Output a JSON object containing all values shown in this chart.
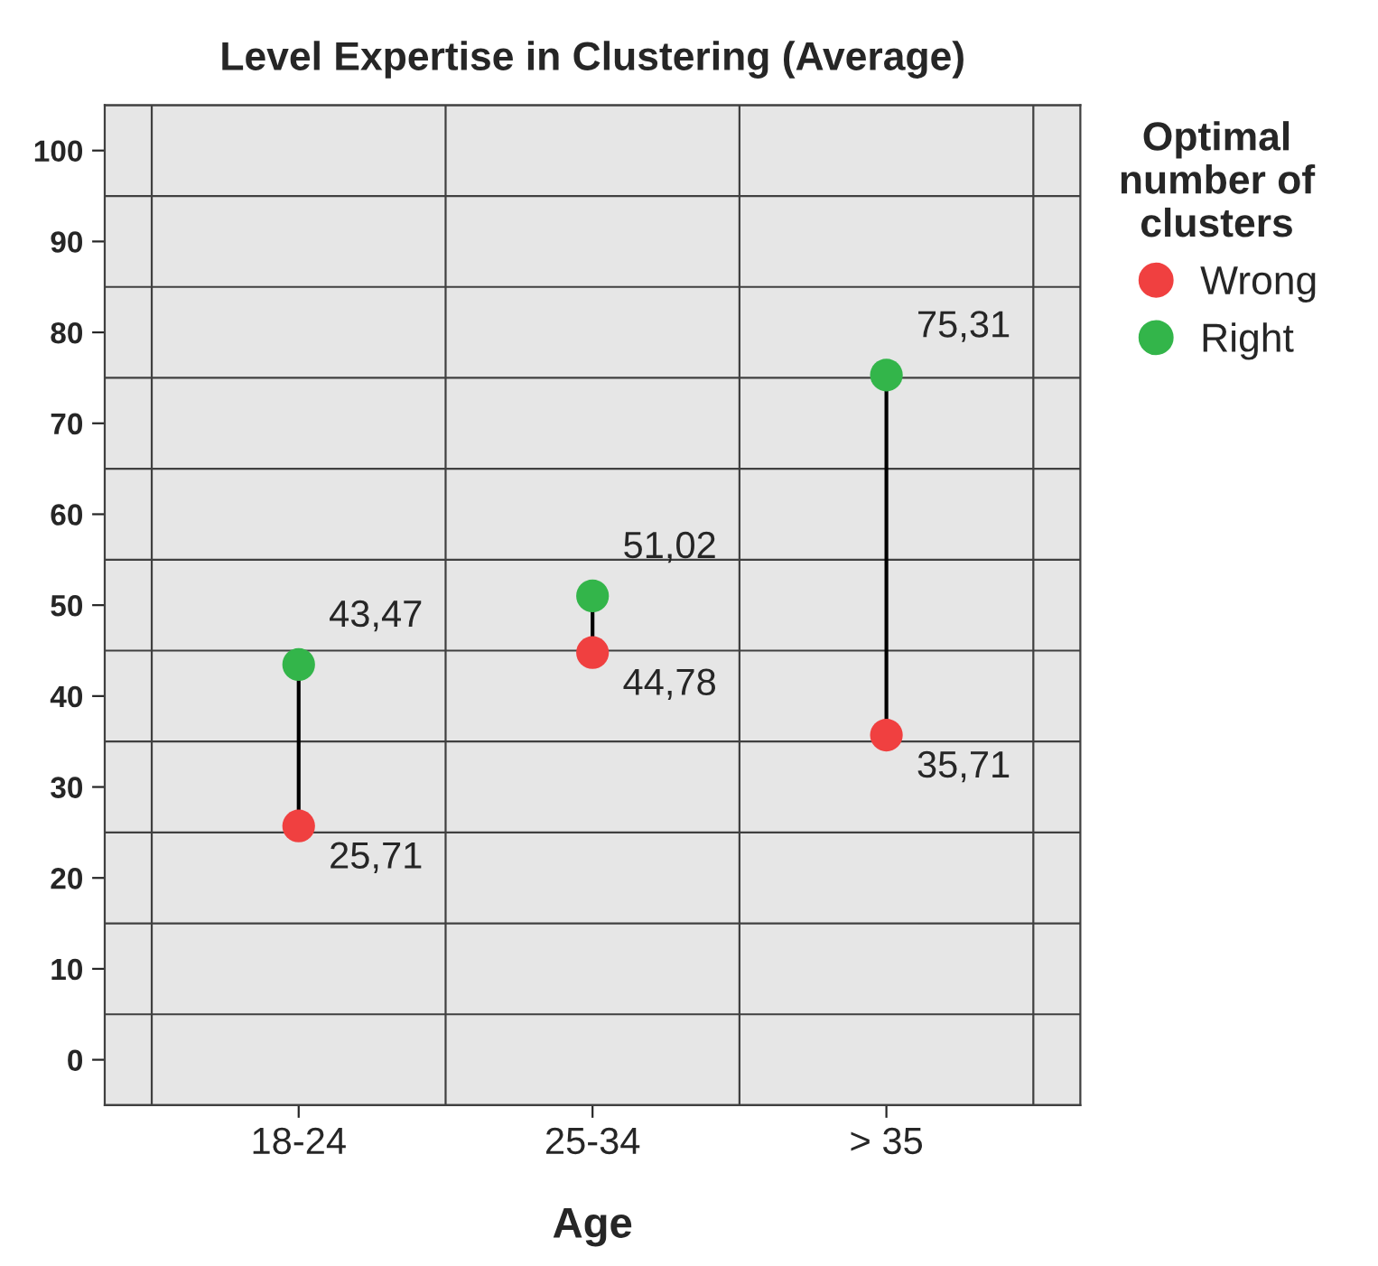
{
  "chart_data": {
    "type": "scatter",
    "title": "Level Expertise in Clustering (Average)",
    "xlabel": "Age",
    "legend_title": "Optimal\nnumber of\nclusters",
    "categories": [
      "18-24",
      "25-34",
      "> 35"
    ],
    "series": [
      {
        "name": "Wrong",
        "color": "#f04040",
        "values": [
          25.71,
          44.78,
          35.71
        ],
        "value_labels": [
          "25,71",
          "44,78",
          "35,71"
        ]
      },
      {
        "name": "Right",
        "color": "#33b54a",
        "values": [
          43.47,
          51.02,
          75.31
        ],
        "value_labels": [
          "43,47",
          "51,02",
          "75,31"
        ]
      }
    ],
    "ylim": [
      -5,
      105
    ],
    "yticks": [
      0,
      10,
      20,
      30,
      40,
      50,
      60,
      70,
      80,
      90,
      100
    ],
    "grid": true,
    "legend": "top right",
    "marker": "circle"
  }
}
